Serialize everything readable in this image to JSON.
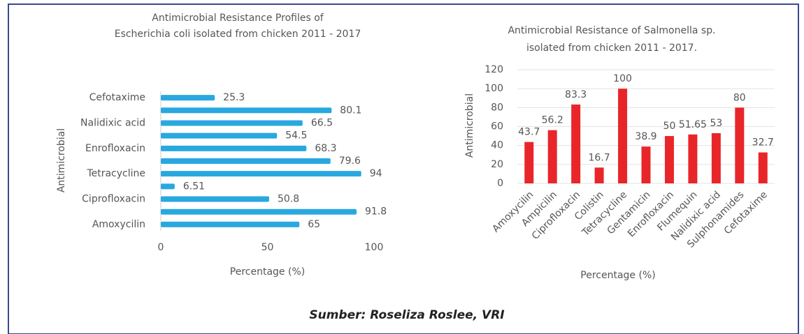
{
  "chart_data": [
    {
      "type": "hbar",
      "title": [
        "Antimicrobial Resistance Profiles of",
        "Escherichia coli isolated from chicken 2011  -  2017"
      ],
      "categories": [
        "Amoxycilin",
        null,
        "Ciprofloxacin",
        null,
        "Tetracycline",
        null,
        "Enrofloxacin",
        null,
        "Nalidixic acid",
        null,
        "Cefotaxime"
      ],
      "values": [
        65,
        91.8,
        50.8,
        6.51,
        94,
        79.6,
        68.3,
        54.5,
        66.5,
        80.1,
        25.3
      ],
      "color": "#29a8e0",
      "xlim": [
        0,
        100
      ],
      "xticks": [
        0,
        50,
        100
      ],
      "grid": false,
      "xlabel": "Percentage (%)",
      "ylabel": "Antimicrobial"
    },
    {
      "type": "bar",
      "title": [
        "Antimicrobial Resistance of  Salmonella sp.",
        "isolated from chicken 2011  -  2017."
      ],
      "categories": [
        "Amoxycilin",
        "Ampicilin",
        "Ciprofloxacin",
        "Colistin",
        "Tetracycline",
        "Gentamicin",
        "Enrofloxacin",
        "Flumequin",
        "Nalidixic acid",
        "Sulphonamides",
        "Cefotaxime"
      ],
      "values": [
        43.7,
        56.2,
        83.3,
        16.7,
        100,
        38.9,
        50,
        51.65,
        53,
        80,
        32.7
      ],
      "color": "#e8262a",
      "ylim": [
        0,
        120
      ],
      "yticks": [
        0,
        20,
        40,
        60,
        80,
        100,
        120
      ],
      "grid": true,
      "xlabel": "Percentage (%)",
      "ylabel": "Antimicrobial"
    }
  ],
  "caption": "Sumber: Roseliza Roslee, VRI"
}
